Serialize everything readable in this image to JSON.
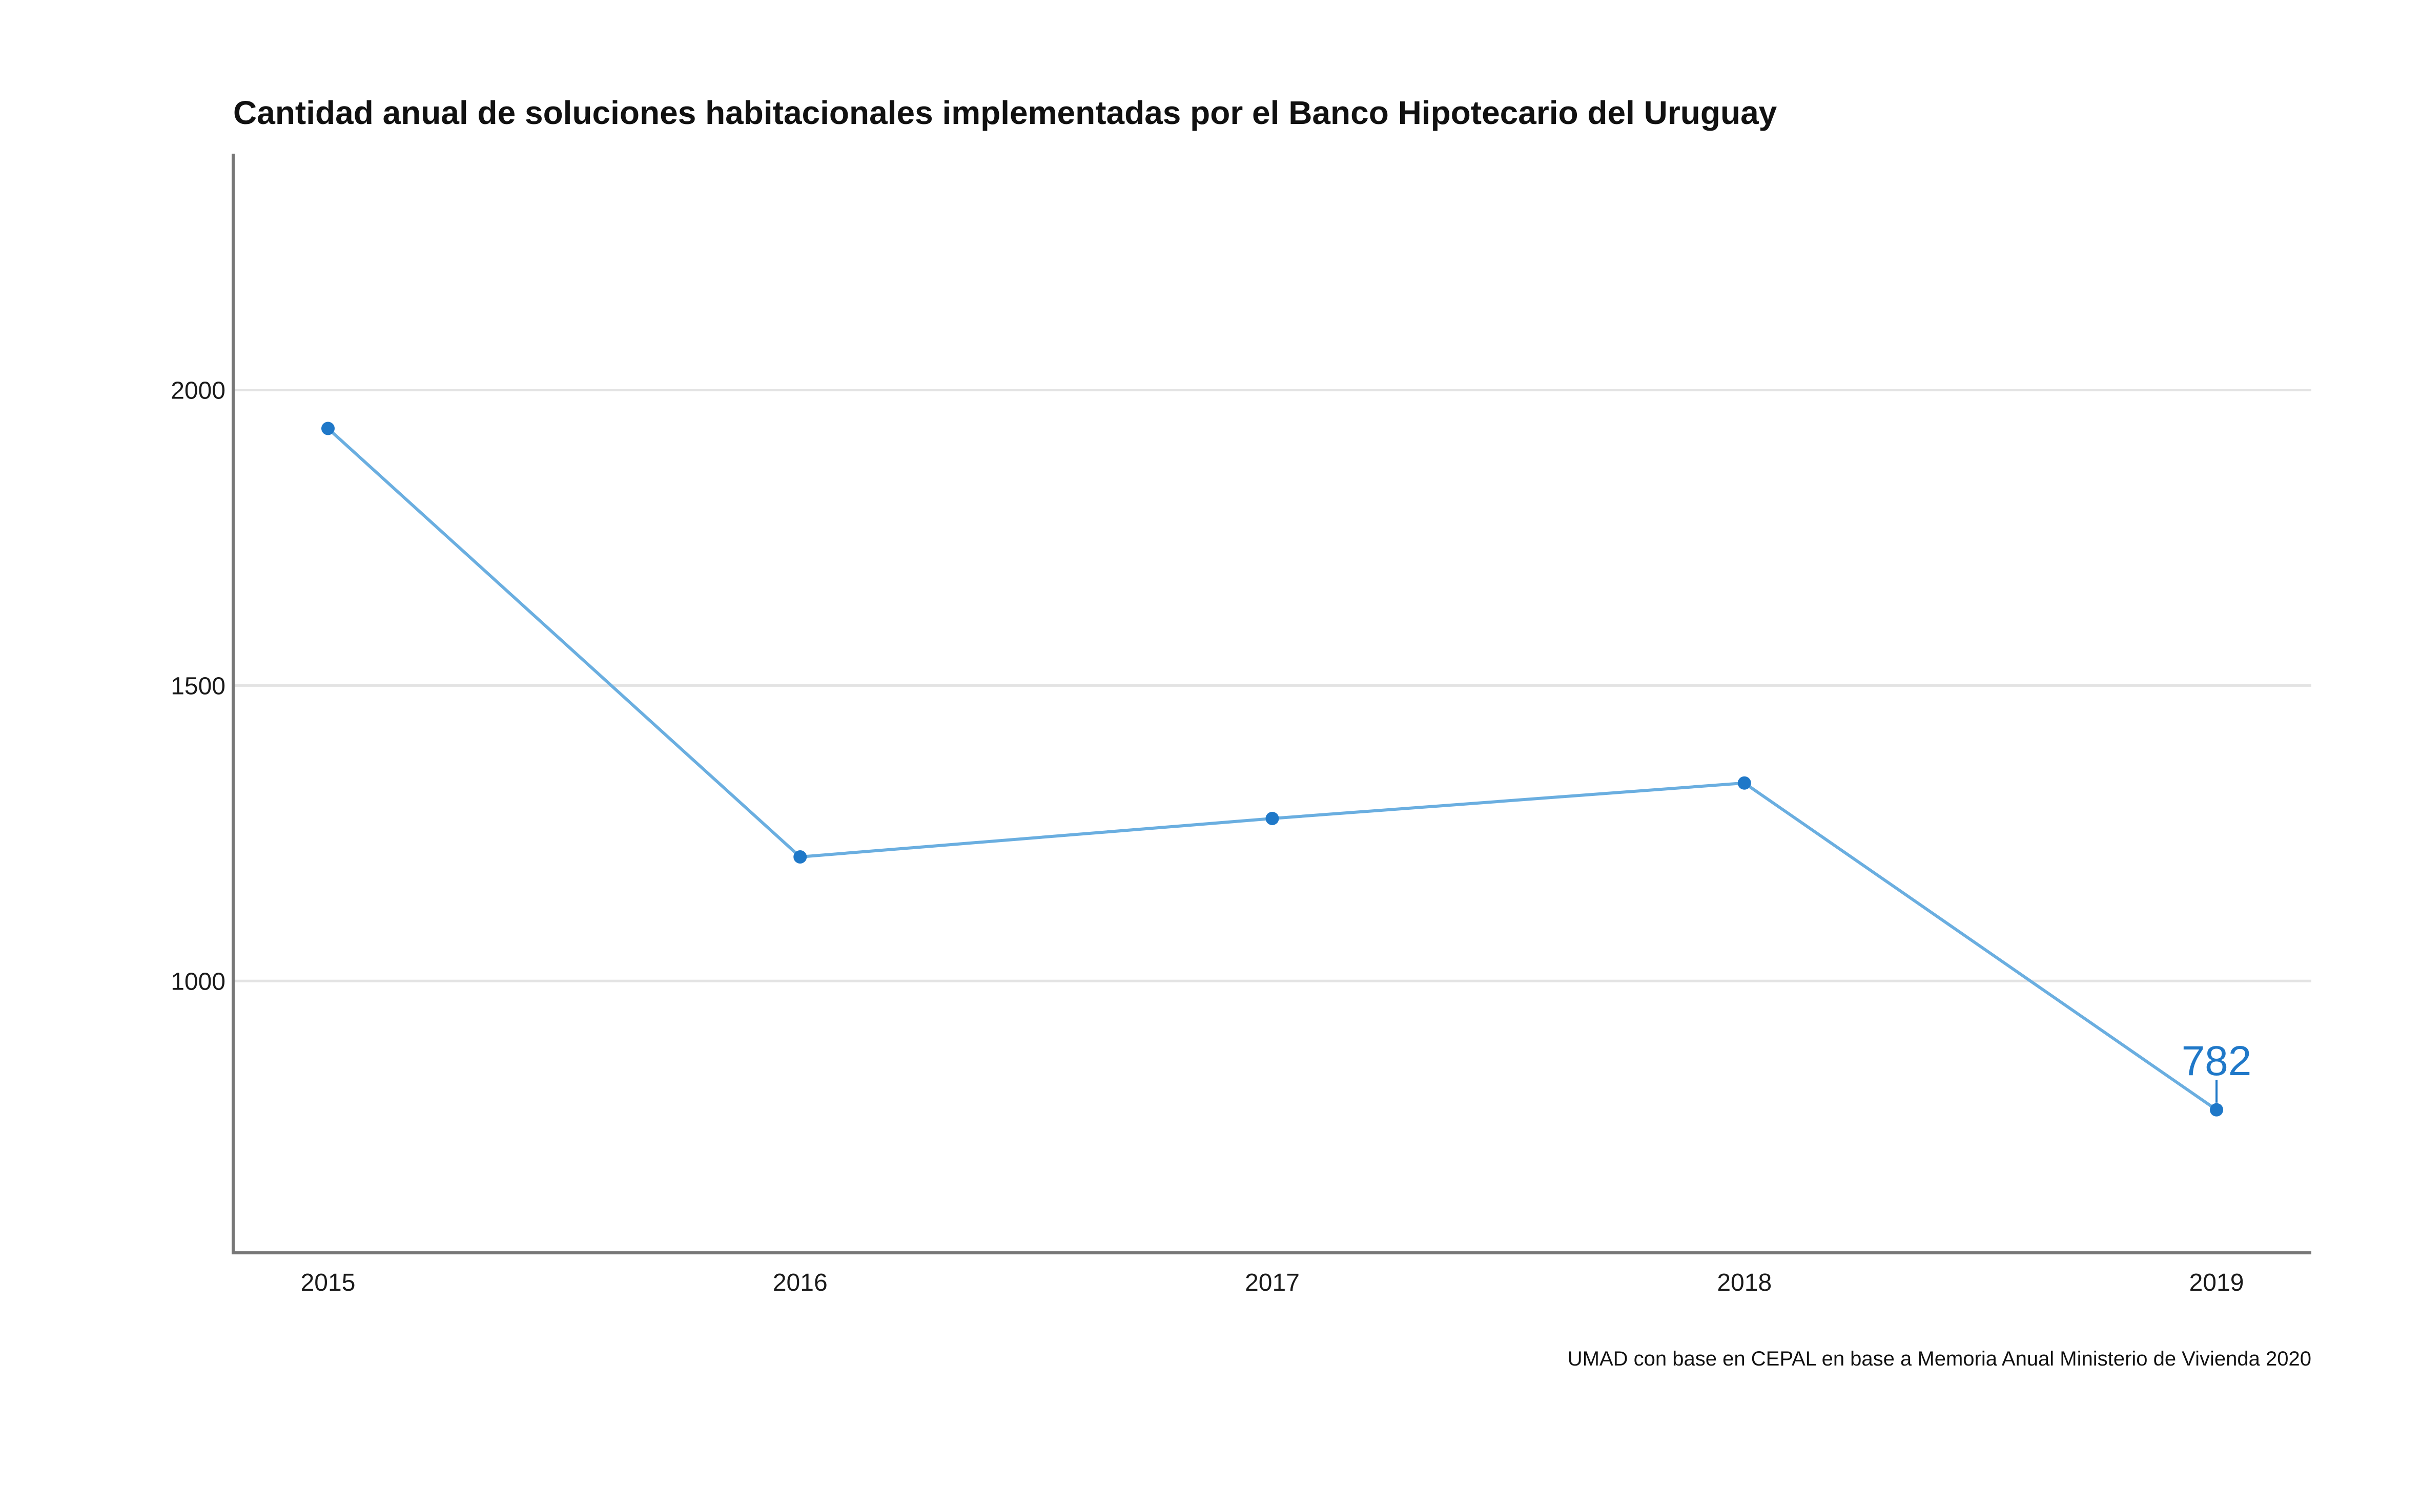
{
  "chart_data": {
    "type": "line",
    "title": "Cantidad anual de soluciones habitacionales implementadas por el Banco Hipotecario del Uruguay",
    "caption": "UMAD con base en CEPAL en base a Memoria Anual Ministerio de Vivienda 2020",
    "xlabel": "",
    "ylabel": "",
    "categories": [
      "2015",
      "2016",
      "2017",
      "2018",
      "2019"
    ],
    "values": [
      1935,
      1210,
      1275,
      1335,
      782
    ],
    "ylim": [
      540,
      2400
    ],
    "yticks": [
      "1000",
      "1500",
      "2000"
    ],
    "grid": "horizontal",
    "annotation": {
      "category": "2019",
      "value": 782,
      "label": "782"
    },
    "colors": {
      "line": "#6aaee0",
      "point": "#1f78c8",
      "label": "#1f78c8",
      "axis": "#777777",
      "grid": "#e3e3e3"
    }
  }
}
